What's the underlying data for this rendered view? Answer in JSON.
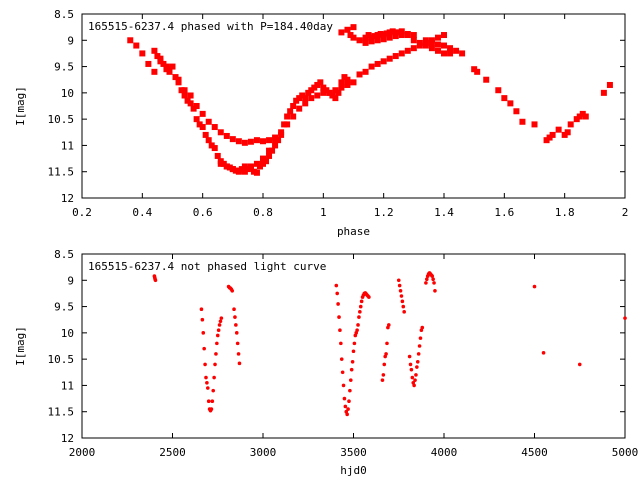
{
  "chart_data": [
    {
      "type": "scatter",
      "title": "165515-6237.4 phased with P=184.40day",
      "xlabel": "phase",
      "ylabel": "I[mag]",
      "xlim": [
        0.2,
        2.0
      ],
      "ylim": [
        8.5,
        12.0
      ],
      "y_inverted": true,
      "grid": false,
      "marker_color": "#ff0000",
      "marker": "filled-square",
      "x_ticks": [
        "0.2",
        "0.4",
        "0.6",
        "0.8",
        "1",
        "1.2",
        "1.4",
        "1.6",
        "1.8",
        "2"
      ],
      "x_tick_values": [
        0.2,
        0.4,
        0.6,
        0.8,
        1.0,
        1.2,
        1.4,
        1.6,
        1.8,
        2.0
      ],
      "y_ticks": [
        "8.5",
        "9",
        "9.5",
        "10",
        "10.5",
        "11",
        "11.5",
        "12"
      ],
      "y_tick_values": [
        8.5,
        9.0,
        9.5,
        10.0,
        10.5,
        11.0,
        11.5,
        12.0
      ],
      "series": [
        {
          "x": [
            0.36,
            0.38,
            0.4,
            0.42,
            0.44,
            0.45,
            0.46,
            0.47,
            0.48,
            0.49,
            0.5,
            0.51,
            0.52,
            0.53,
            0.54,
            0.55,
            0.56,
            0.57,
            0.58,
            0.59,
            0.6,
            0.61,
            0.62,
            0.63,
            0.64,
            0.65,
            0.66,
            0.67,
            0.68,
            0.69,
            0.7,
            0.71,
            0.72,
            0.73,
            0.74,
            0.75,
            0.76,
            0.77,
            0.78,
            0.79,
            0.8,
            0.81,
            0.82,
            0.83,
            0.84,
            0.85,
            0.86,
            0.87,
            0.88,
            0.89,
            0.9,
            0.91,
            0.92,
            0.93,
            0.94,
            0.95,
            0.96,
            0.97,
            0.98,
            0.99,
            1.0,
            1.01,
            1.02,
            1.03,
            1.04,
            1.05,
            1.06,
            1.07,
            1.08,
            1.09,
            1.1,
            1.12,
            1.14,
            1.15,
            1.16,
            1.17,
            1.18,
            1.19,
            1.2,
            1.21,
            1.22,
            1.23,
            1.24,
            1.25,
            1.26,
            1.28,
            1.3,
            1.32,
            1.34,
            1.36,
            1.38,
            1.4,
            1.42,
            1.44,
            1.46,
            1.5,
            1.51,
            1.54,
            1.58,
            1.6,
            1.62,
            1.64,
            1.66,
            1.7,
            1.74,
            1.75,
            1.76,
            1.78,
            1.8,
            1.81,
            1.82,
            1.84,
            1.85,
            1.86,
            1.87,
            1.93,
            1.95,
            0.66,
            0.68,
            0.7,
            0.72,
            0.74,
            0.76,
            0.78,
            0.8,
            0.82,
            0.84,
            0.86,
            0.88,
            0.9,
            0.92,
            0.94,
            0.96,
            0.98,
            1.0,
            1.02,
            1.04,
            1.06,
            1.08,
            1.1,
            1.12,
            1.14,
            1.16,
            1.18,
            1.2,
            1.22,
            1.24,
            1.26,
            1.28,
            1.3,
            1.32,
            1.34,
            1.36,
            1.38,
            1.4,
            0.44,
            0.46,
            0.48,
            0.52,
            0.54,
            0.56,
            0.58,
            0.6,
            0.62,
            0.64,
            0.66,
            0.68,
            0.7,
            0.72,
            0.74,
            0.76,
            0.78,
            0.8,
            0.82,
            0.84,
            1.06,
            1.08,
            1.1,
            1.14,
            1.16,
            1.18,
            1.2,
            1.22,
            1.24,
            1.26,
            1.28,
            1.3,
            1.34,
            1.36,
            1.38,
            1.4,
            1.42
          ],
          "y": [
            9.0,
            9.1,
            9.25,
            9.45,
            9.6,
            9.3,
            9.4,
            9.45,
            9.55,
            9.6,
            9.5,
            9.7,
            9.75,
            9.95,
            10.05,
            10.15,
            10.2,
            10.3,
            10.5,
            10.6,
            10.65,
            10.8,
            10.9,
            11.0,
            11.05,
            11.2,
            11.3,
            11.35,
            11.4,
            11.42,
            11.45,
            11.48,
            11.5,
            11.45,
            11.4,
            11.45,
            11.42,
            11.5,
            11.52,
            11.4,
            11.35,
            11.3,
            11.2,
            11.1,
            11.0,
            10.9,
            10.8,
            10.6,
            10.45,
            10.35,
            10.25,
            10.15,
            10.1,
            10.05,
            10.1,
            10.0,
            9.95,
            9.9,
            9.85,
            9.8,
            9.9,
            9.95,
            10.0,
            10.05,
            10.1,
            10.0,
            9.8,
            9.7,
            9.75,
            8.9,
            8.95,
            9.0,
            8.95,
            8.9,
            8.95,
            8.92,
            8.9,
            8.88,
            8.9,
            8.87,
            8.85,
            8.83,
            8.85,
            8.85,
            8.83,
            8.9,
            9.0,
            9.05,
            9.1,
            9.15,
            9.2,
            9.25,
            9.25,
            9.2,
            9.25,
            9.55,
            9.6,
            9.75,
            9.95,
            10.1,
            10.2,
            10.35,
            10.55,
            10.6,
            10.9,
            10.85,
            10.8,
            10.7,
            10.8,
            10.75,
            10.6,
            10.5,
            10.45,
            10.4,
            10.45,
            10.0,
            9.85,
            11.35,
            11.4,
            11.45,
            11.48,
            11.5,
            11.4,
            11.35,
            11.25,
            11.1,
            10.9,
            10.75,
            10.6,
            10.45,
            10.3,
            10.2,
            10.1,
            10.05,
            10.0,
            10.0,
            9.95,
            9.9,
            9.85,
            9.8,
            9.65,
            9.6,
            9.5,
            9.45,
            9.4,
            9.35,
            9.3,
            9.25,
            9.2,
            9.15,
            9.1,
            9.05,
            9.0,
            8.95,
            8.9,
            9.2,
            9.35,
            9.5,
            9.8,
            9.95,
            10.05,
            10.25,
            10.4,
            10.55,
            10.65,
            10.75,
            10.82,
            10.88,
            10.92,
            10.95,
            10.93,
            10.9,
            10.92,
            10.9,
            10.85,
            8.85,
            8.8,
            8.75,
            9.05,
            9.02,
            9.0,
            8.98,
            8.95,
            8.92,
            8.9,
            8.88,
            8.9,
            9.0,
            9.05,
            9.08,
            9.1,
            9.15
          ]
        }
      ]
    },
    {
      "type": "scatter",
      "title": "165515-6237.4 not phased light curve",
      "xlabel": "hjd0",
      "ylabel": "I[mag]",
      "xlim": [
        2000,
        5000
      ],
      "ylim": [
        8.5,
        12.0
      ],
      "y_inverted": true,
      "grid": false,
      "marker_color": "#ff0000",
      "marker": "small-dot",
      "x_ticks": [
        "2000",
        "2500",
        "3000",
        "3500",
        "4000",
        "4500",
        "5000"
      ],
      "x_tick_values": [
        2000,
        2500,
        3000,
        3500,
        4000,
        4500,
        5000
      ],
      "y_ticks": [
        "8.5",
        "9",
        "9.5",
        "10",
        "10.5",
        "11",
        "11.5",
        "12"
      ],
      "y_tick_values": [
        8.5,
        9.0,
        9.5,
        10.0,
        10.5,
        11.0,
        11.5,
        12.0
      ],
      "series": [
        {
          "x": [
            2400,
            2402,
            2404,
            2406,
            2660,
            2665,
            2670,
            2675,
            2680,
            2685,
            2690,
            2695,
            2700,
            2705,
            2710,
            2715,
            2720,
            2725,
            2730,
            2735,
            2740,
            2745,
            2750,
            2755,
            2760,
            2765,
            2770,
            2810,
            2815,
            2820,
            2825,
            2830,
            2840,
            2845,
            2850,
            2855,
            2860,
            2865,
            2870,
            3405,
            3410,
            3415,
            3420,
            3425,
            3430,
            3435,
            3440,
            3445,
            3450,
            3455,
            3460,
            3465,
            3470,
            3475,
            3480,
            3485,
            3490,
            3495,
            3500,
            3505,
            3510,
            3515,
            3520,
            3525,
            3530,
            3535,
            3540,
            3545,
            3550,
            3555,
            3560,
            3565,
            3570,
            3575,
            3580,
            3585,
            3660,
            3665,
            3670,
            3675,
            3680,
            3685,
            3690,
            3695,
            3750,
            3755,
            3760,
            3765,
            3770,
            3775,
            3780,
            3810,
            3815,
            3820,
            3825,
            3830,
            3835,
            3840,
            3845,
            3850,
            3855,
            3860,
            3865,
            3870,
            3875,
            3880,
            3900,
            3905,
            3910,
            3915,
            3920,
            3925,
            3930,
            3935,
            3940,
            3945,
            3950,
            4500,
            4550,
            4750,
            5000
          ],
          "y": [
            8.92,
            8.95,
            8.98,
            9.0,
            9.55,
            9.75,
            10.0,
            10.3,
            10.6,
            10.85,
            10.95,
            11.05,
            11.3,
            11.45,
            11.48,
            11.45,
            11.3,
            11.1,
            10.85,
            10.6,
            10.4,
            10.2,
            10.05,
            9.95,
            9.85,
            9.78,
            9.72,
            9.12,
            9.14,
            9.15,
            9.17,
            9.2,
            9.55,
            9.7,
            9.85,
            10.0,
            10.2,
            10.4,
            10.58,
            9.1,
            9.25,
            9.45,
            9.7,
            9.95,
            10.2,
            10.5,
            10.75,
            11.0,
            11.25,
            11.4,
            11.5,
            11.55,
            11.45,
            11.3,
            11.1,
            10.9,
            10.7,
            10.55,
            10.35,
            10.2,
            10.05,
            10.0,
            9.95,
            9.85,
            9.7,
            9.6,
            9.5,
            9.4,
            9.32,
            9.28,
            9.25,
            9.24,
            9.26,
            9.28,
            9.3,
            9.32,
            10.9,
            10.8,
            10.6,
            10.45,
            10.4,
            10.2,
            9.9,
            9.85,
            9.0,
            9.1,
            9.2,
            9.3,
            9.4,
            9.5,
            9.6,
            10.45,
            10.6,
            10.7,
            10.85,
            10.95,
            11.0,
            10.9,
            10.8,
            10.65,
            10.55,
            10.4,
            10.25,
            10.1,
            9.95,
            9.9,
            9.05,
            8.98,
            8.92,
            8.88,
            8.86,
            8.88,
            8.9,
            8.92,
            8.98,
            9.05,
            9.2,
            9.12,
            10.38,
            10.6,
            9.72
          ]
        }
      ]
    }
  ]
}
